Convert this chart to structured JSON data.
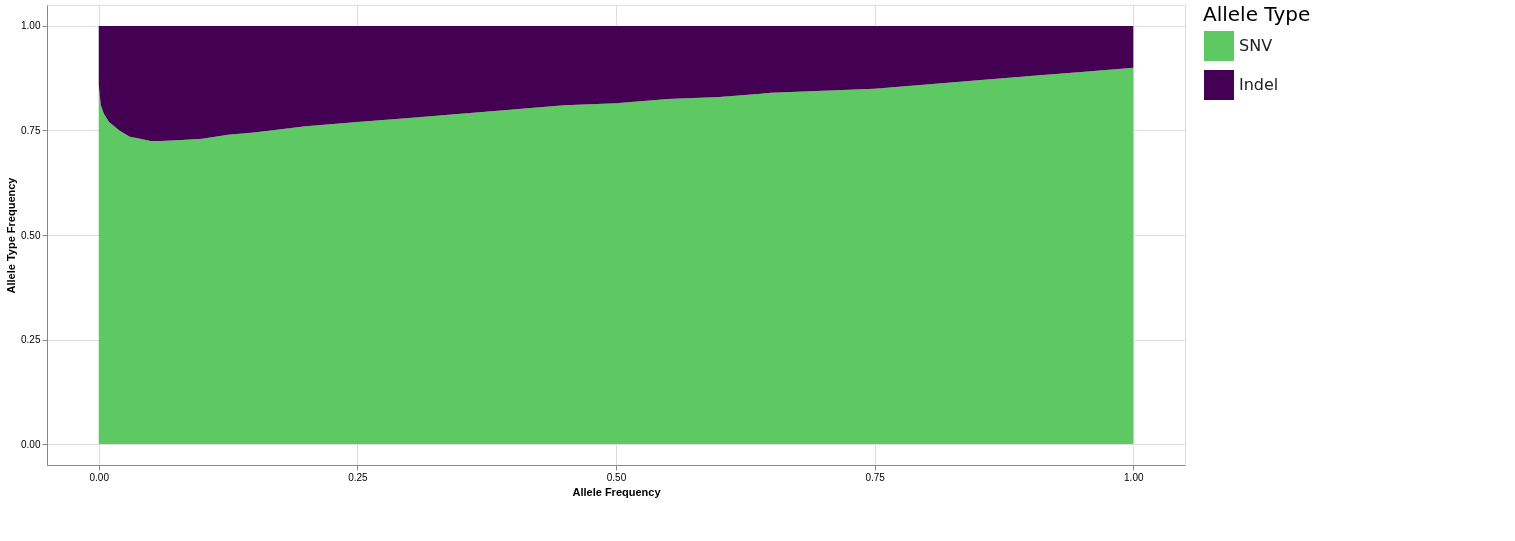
{
  "chart_data": {
    "type": "area",
    "stacked": true,
    "xlabel": "Allele Frequency",
    "ylabel": "Allele Type Frequency",
    "legend_title": "Allele Type",
    "x": [
      0,
      0.002,
      0.005,
      0.01,
      0.02,
      0.03,
      0.04,
      0.05,
      0.06,
      0.08,
      0.1,
      0.125,
      0.15,
      0.2,
      0.25,
      0.3,
      0.35,
      0.4,
      0.45,
      0.5,
      0.55,
      0.6,
      0.65,
      0.7,
      0.75,
      0.8,
      0.85,
      0.9,
      0.95,
      1.0
    ],
    "series": [
      {
        "name": "SNV",
        "color": "#5ec962",
        "values": [
          0.86,
          0.81,
          0.79,
          0.77,
          0.75,
          0.735,
          0.73,
          0.725,
          0.725,
          0.727,
          0.73,
          0.74,
          0.745,
          0.76,
          0.77,
          0.78,
          0.79,
          0.8,
          0.81,
          0.815,
          0.825,
          0.83,
          0.84,
          0.845,
          0.85,
          0.86,
          0.87,
          0.88,
          0.89,
          0.9
        ]
      },
      {
        "name": "Indel",
        "color": "#440154",
        "values": [
          0.14,
          0.19,
          0.21,
          0.23,
          0.25,
          0.265,
          0.27,
          0.275,
          0.275,
          0.273,
          0.27,
          0.26,
          0.255,
          0.24,
          0.23,
          0.22,
          0.21,
          0.2,
          0.19,
          0.185,
          0.175,
          0.17,
          0.16,
          0.155,
          0.15,
          0.14,
          0.13,
          0.12,
          0.11,
          0.1
        ]
      }
    ],
    "xlim": [
      -0.05,
      1.05
    ],
    "xticks": [
      {
        "value": 0,
        "label": "0.00"
      },
      {
        "value": 0.25,
        "label": "0.25"
      },
      {
        "value": 0.5,
        "label": "0.50"
      },
      {
        "value": 0.75,
        "label": "0.75"
      },
      {
        "value": 1,
        "label": "1.00"
      }
    ],
    "ylim": [
      -0.05,
      1.05
    ],
    "yticks": [
      {
        "value": 0,
        "label": "0.00"
      },
      {
        "value": 0.25,
        "label": "0.25"
      },
      {
        "value": 0.5,
        "label": "0.50"
      },
      {
        "value": 0.75,
        "label": "0.75"
      },
      {
        "value": 1,
        "label": "1.00"
      }
    ],
    "grid": true,
    "legend": "right"
  }
}
